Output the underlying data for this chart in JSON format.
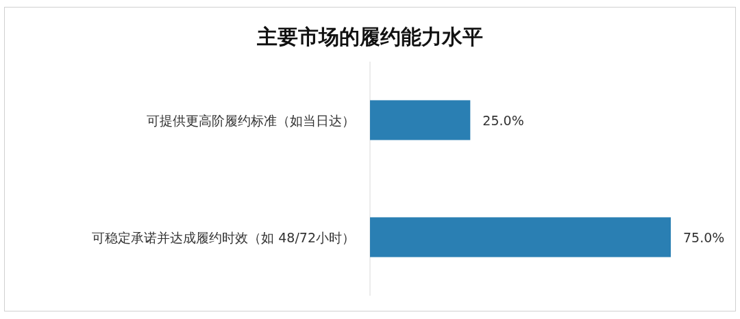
{
  "chart_data": {
    "type": "bar",
    "orientation": "horizontal",
    "title": "主要市场的履约能力水平",
    "categories": [
      "可提供更高阶履约标准（如当日达）",
      "可稳定承诺并达成履约时效（如 48/72小时）"
    ],
    "values": [
      25,
      75
    ],
    "value_labels": [
      "25.0%",
      "75.0%"
    ],
    "color": "#2a7fb3"
  }
}
